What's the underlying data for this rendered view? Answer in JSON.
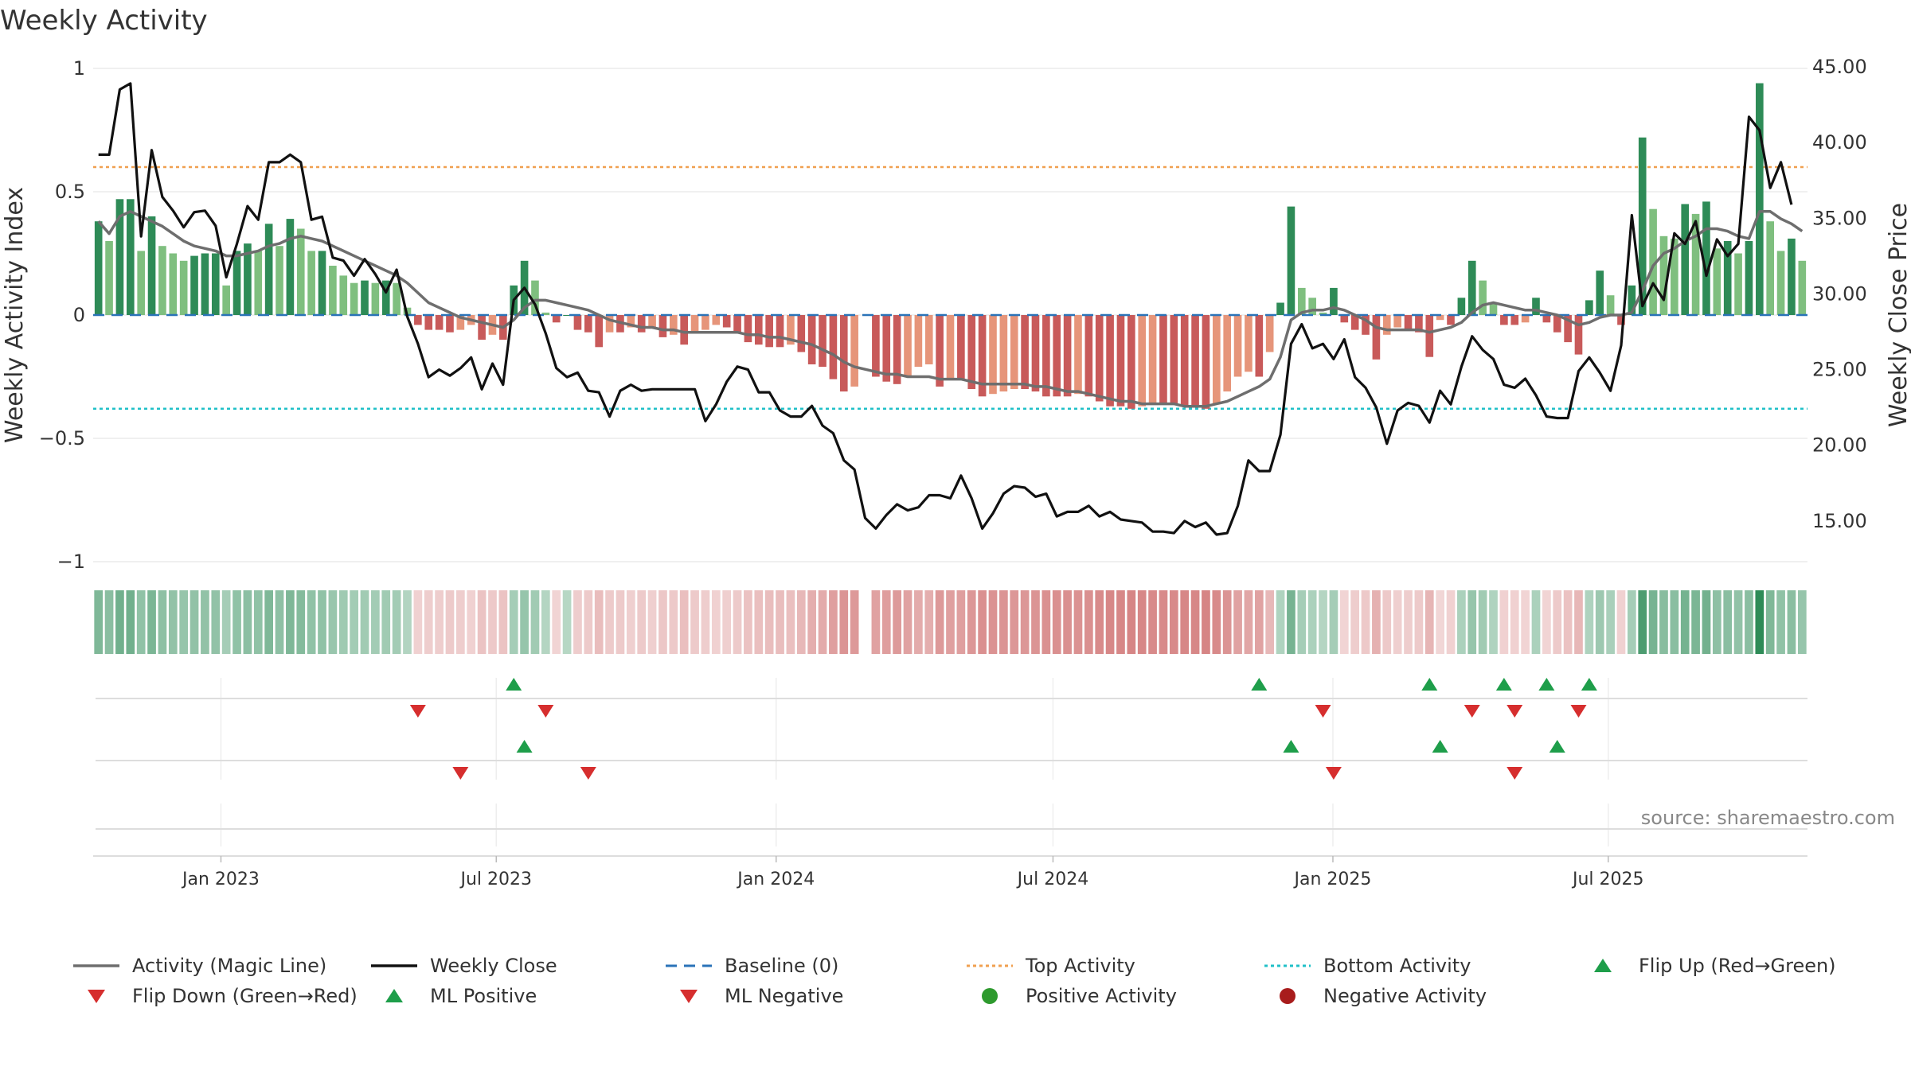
{
  "title": "Weekly Activity",
  "source_note": "source: sharemaestro.com",
  "colors": {
    "strong_green": "#2e8b57",
    "light_green": "#7fbf7f",
    "strong_red": "#c85a5a",
    "light_red": "#e6957a",
    "magic_line": "#6e6e6e",
    "close_line": "#111111",
    "baseline": "#2a73b8",
    "top_line": "#f0a050",
    "bottom_line": "#20c0c8",
    "marker_green": "#1e9e4a",
    "marker_red": "#d62e2e",
    "positive_dot": "#2e9a2e",
    "negative_dot": "#a81c1c"
  },
  "chart_data": {
    "type": "bar",
    "title": "Weekly Activity",
    "ylabel": "Weekly Activity Index",
    "y2label": "Weekly Close Price",
    "ylim": [
      -1,
      1
    ],
    "y2lim": [
      10,
      45
    ],
    "yticks": [
      "1",
      "0.5",
      "0",
      "−0.5",
      "−1"
    ],
    "y2ticks": [
      "45.00",
      "40.00",
      "35.00",
      "30.00",
      "25.00",
      "20.00",
      "15.00"
    ],
    "x_start": "2022-10-09",
    "x_tick_labels": [
      "Jan 2023",
      "Jul 2023",
      "Jan 2024",
      "Jul 2024",
      "Jan 2025",
      "Jul 2025"
    ],
    "top_activity": 0.6,
    "bottom_activity": -0.38,
    "baseline": 0,
    "activity": [
      0.38,
      0.3,
      0.47,
      0.47,
      0.26,
      0.4,
      0.28,
      0.25,
      0.22,
      0.24,
      0.25,
      0.25,
      0.12,
      0.26,
      0.29,
      0.26,
      0.37,
      0.28,
      0.39,
      0.35,
      0.26,
      0.26,
      0.2,
      0.16,
      0.13,
      0.14,
      0.13,
      0.14,
      0.13,
      0.03,
      -0.04,
      -0.06,
      -0.06,
      -0.07,
      -0.06,
      -0.04,
      -0.1,
      -0.08,
      -0.1,
      0.12,
      0.22,
      0.14,
      0.01,
      -0.03,
      0.0,
      -0.06,
      -0.07,
      -0.13,
      -0.07,
      -0.07,
      -0.05,
      -0.07,
      -0.05,
      -0.09,
      -0.08,
      -0.12,
      -0.07,
      -0.06,
      -0.04,
      -0.05,
      -0.07,
      -0.11,
      -0.12,
      -0.13,
      -0.13,
      -0.12,
      -0.15,
      -0.2,
      -0.21,
      -0.26,
      -0.31,
      -0.29,
      null,
      -0.25,
      -0.27,
      -0.28,
      -0.25,
      -0.21,
      -0.2,
      -0.29,
      -0.26,
      -0.26,
      -0.3,
      -0.33,
      -0.32,
      -0.31,
      -0.3,
      -0.3,
      -0.31,
      -0.33,
      -0.33,
      -0.33,
      -0.32,
      -0.33,
      -0.35,
      -0.37,
      -0.37,
      -0.38,
      -0.37,
      -0.36,
      -0.36,
      -0.36,
      -0.37,
      -0.37,
      -0.38,
      -0.36,
      -0.31,
      -0.25,
      -0.23,
      -0.25,
      -0.15,
      0.05,
      0.44,
      0.11,
      0.07,
      0.01,
      0.11,
      -0.03,
      -0.06,
      -0.08,
      -0.18,
      -0.08,
      -0.05,
      -0.06,
      -0.07,
      -0.17,
      -0.02,
      -0.04,
      0.07,
      0.22,
      0.14,
      0.05,
      -0.04,
      -0.04,
      -0.03,
      0.07,
      -0.03,
      -0.07,
      -0.11,
      -0.16,
      0.06,
      0.18,
      0.08,
      -0.04,
      0.12,
      0.72,
      0.43,
      0.32,
      0.31,
      0.45,
      0.41,
      0.46,
      0.27,
      0.3,
      0.25,
      0.3,
      0.94,
      0.38,
      0.26,
      0.31,
      0.22
    ],
    "magic_line": [
      0.38,
      0.33,
      0.4,
      0.42,
      0.4,
      0.38,
      0.36,
      0.33,
      0.3,
      0.28,
      0.27,
      0.26,
      0.24,
      0.24,
      0.25,
      0.26,
      0.28,
      0.29,
      0.31,
      0.32,
      0.31,
      0.3,
      0.28,
      0.26,
      0.24,
      0.22,
      0.2,
      0.18,
      0.16,
      0.13,
      0.09,
      0.05,
      0.03,
      0.01,
      -0.01,
      -0.02,
      -0.03,
      -0.04,
      -0.05,
      -0.02,
      0.03,
      0.06,
      0.06,
      0.05,
      0.04,
      0.03,
      0.02,
      0.0,
      -0.02,
      -0.03,
      -0.04,
      -0.05,
      -0.05,
      -0.06,
      -0.06,
      -0.07,
      -0.07,
      -0.07,
      -0.07,
      -0.07,
      -0.07,
      -0.08,
      -0.08,
      -0.09,
      -0.09,
      -0.1,
      -0.11,
      -0.12,
      -0.14,
      -0.16,
      -0.19,
      -0.21,
      -0.22,
      -0.23,
      -0.24,
      -0.24,
      -0.25,
      -0.25,
      -0.25,
      -0.26,
      -0.26,
      -0.26,
      -0.27,
      -0.28,
      -0.28,
      -0.28,
      -0.28,
      -0.28,
      -0.29,
      -0.29,
      -0.3,
      -0.31,
      -0.31,
      -0.32,
      -0.33,
      -0.34,
      -0.35,
      -0.35,
      -0.36,
      -0.36,
      -0.36,
      -0.36,
      -0.37,
      -0.37,
      -0.37,
      -0.36,
      -0.35,
      -0.33,
      -0.31,
      -0.29,
      -0.26,
      -0.17,
      -0.02,
      0.01,
      0.02,
      0.02,
      0.03,
      0.02,
      0.0,
      -0.02,
      -0.05,
      -0.06,
      -0.06,
      -0.06,
      -0.06,
      -0.07,
      -0.06,
      -0.05,
      -0.03,
      0.01,
      0.04,
      0.05,
      0.04,
      0.03,
      0.02,
      0.02,
      0.01,
      0.0,
      -0.02,
      -0.04,
      -0.03,
      -0.01,
      0.0,
      0.0,
      0.01,
      0.1,
      0.2,
      0.25,
      0.27,
      0.3,
      0.32,
      0.35,
      0.35,
      0.34,
      0.32,
      0.31,
      0.42,
      0.42,
      0.39,
      0.37,
      0.34
    ],
    "weekly_close": [
      39.2,
      39.2,
      43.5,
      43.9,
      33.8,
      39.5,
      36.4,
      35.5,
      34.4,
      35.4,
      35.5,
      34.5,
      31.1,
      33.3,
      35.8,
      34.9,
      38.7,
      38.7,
      39.2,
      38.7,
      34.9,
      35.1,
      32.4,
      32.2,
      31.2,
      32.3,
      31.3,
      30.1,
      31.6,
      28.5,
      26.7,
      24.5,
      25.0,
      24.6,
      25.1,
      25.8,
      23.7,
      25.4,
      24.0,
      29.6,
      30.4,
      29.3,
      27.4,
      25.1,
      24.5,
      24.8,
      23.6,
      23.5,
      21.9,
      23.6,
      24.0,
      23.6,
      23.7,
      23.7,
      23.7,
      23.7,
      23.7,
      21.6,
      22.7,
      24.2,
      25.2,
      25.0,
      23.5,
      23.5,
      22.3,
      21.9,
      21.9,
      22.6,
      21.3,
      20.8,
      19.0,
      18.4,
      15.2,
      14.5,
      15.4,
      16.1,
      15.7,
      15.9,
      16.7,
      16.7,
      16.5,
      18.0,
      16.5,
      14.5,
      15.5,
      16.8,
      17.3,
      17.2,
      16.6,
      16.8,
      15.3,
      15.6,
      15.6,
      16.0,
      15.3,
      15.6,
      15.1,
      15.0,
      14.9,
      14.3,
      14.3,
      14.2,
      15.0,
      14.6,
      14.9,
      14.1,
      14.2,
      16.0,
      19.0,
      18.3,
      18.3,
      20.7,
      26.7,
      28.0,
      26.4,
      26.7,
      25.7,
      27.0,
      24.5,
      23.8,
      22.5,
      20.1,
      22.3,
      22.8,
      22.6,
      21.5,
      23.6,
      22.7,
      25.2,
      27.2,
      26.3,
      25.7,
      24.0,
      23.8,
      24.4,
      23.3,
      21.9,
      21.8,
      21.8,
      24.9,
      25.8,
      24.8,
      23.6,
      26.6,
      35.2,
      29.2,
      30.7,
      29.6,
      34.0,
      33.3,
      34.8,
      31.2,
      33.6,
      32.5,
      33.3,
      41.7,
      40.8,
      37.0,
      38.7,
      35.9
    ],
    "flip_up_weeks": [
      39,
      109,
      125,
      132,
      136,
      140
    ],
    "flip_down_weeks": [
      30,
      42,
      115,
      129,
      133,
      139
    ],
    "ml_positive_weeks": [
      40,
      112,
      126,
      137
    ],
    "ml_negative_weeks": [
      34,
      46,
      116,
      133
    ]
  },
  "legend": [
    {
      "label": "Activity (Magic Line)",
      "symbol": "line-gray"
    },
    {
      "label": "Weekly Close",
      "symbol": "line-black"
    },
    {
      "label": "Baseline (0)",
      "symbol": "dash-blue"
    },
    {
      "label": "Top Activity",
      "symbol": "dot-orange"
    },
    {
      "label": "Bottom Activity",
      "symbol": "dot-cyan"
    },
    {
      "label": "Flip Up (Red→Green)",
      "symbol": "tri-up-green"
    },
    {
      "label": "Flip Down (Green→Red)",
      "symbol": "tri-down-red"
    },
    {
      "label": "ML Positive",
      "symbol": "tri-up-green"
    },
    {
      "label": "ML Negative",
      "symbol": "tri-down-red"
    },
    {
      "label": "Positive Activity",
      "symbol": "circle-green"
    },
    {
      "label": "Negative Activity",
      "symbol": "circle-red"
    }
  ]
}
